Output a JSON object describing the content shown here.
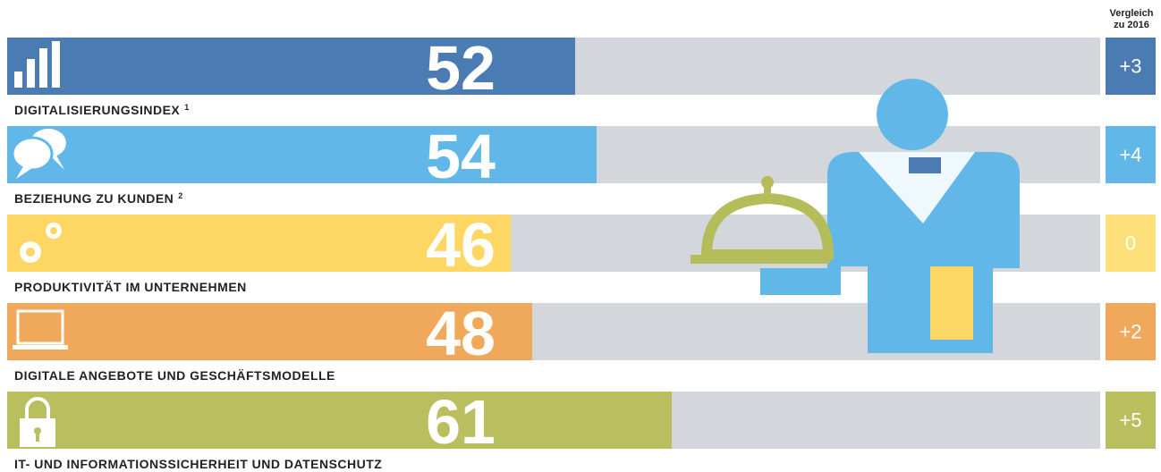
{
  "chart_data": {
    "type": "bar",
    "header": "Vergleich",
    "header_sub": "zu 2016",
    "categories": [
      "DIGITALISIERUNGSINDEX",
      "BEZIEHUNG ZU KUNDEN",
      "PRODUKTIVITÄT IM UNTERNEHMEN",
      "DIGITALE ANGEBOTE UND GESCHÄFTSMODELLE",
      "IT- UND INFORMATIONSSICHERHEIT UND DATENSCHUTZ"
    ],
    "footnotes": [
      "1",
      "2"
    ],
    "values": [
      52,
      54,
      46,
      48,
      61
    ],
    "changes": [
      "+3",
      "+4",
      "0",
      "+2",
      "+5"
    ],
    "colors": [
      "#4a7cb3",
      "#61b8e8",
      "#fdd663",
      "#f0a95a",
      "#b9bf5e"
    ],
    "change_colors": [
      "#4a7cb3",
      "#61b8e8",
      "#fde07a",
      "#f0a95a",
      "#b9bf5e"
    ],
    "track_color": "#d3d6da",
    "xlim": [
      0,
      100
    ]
  }
}
